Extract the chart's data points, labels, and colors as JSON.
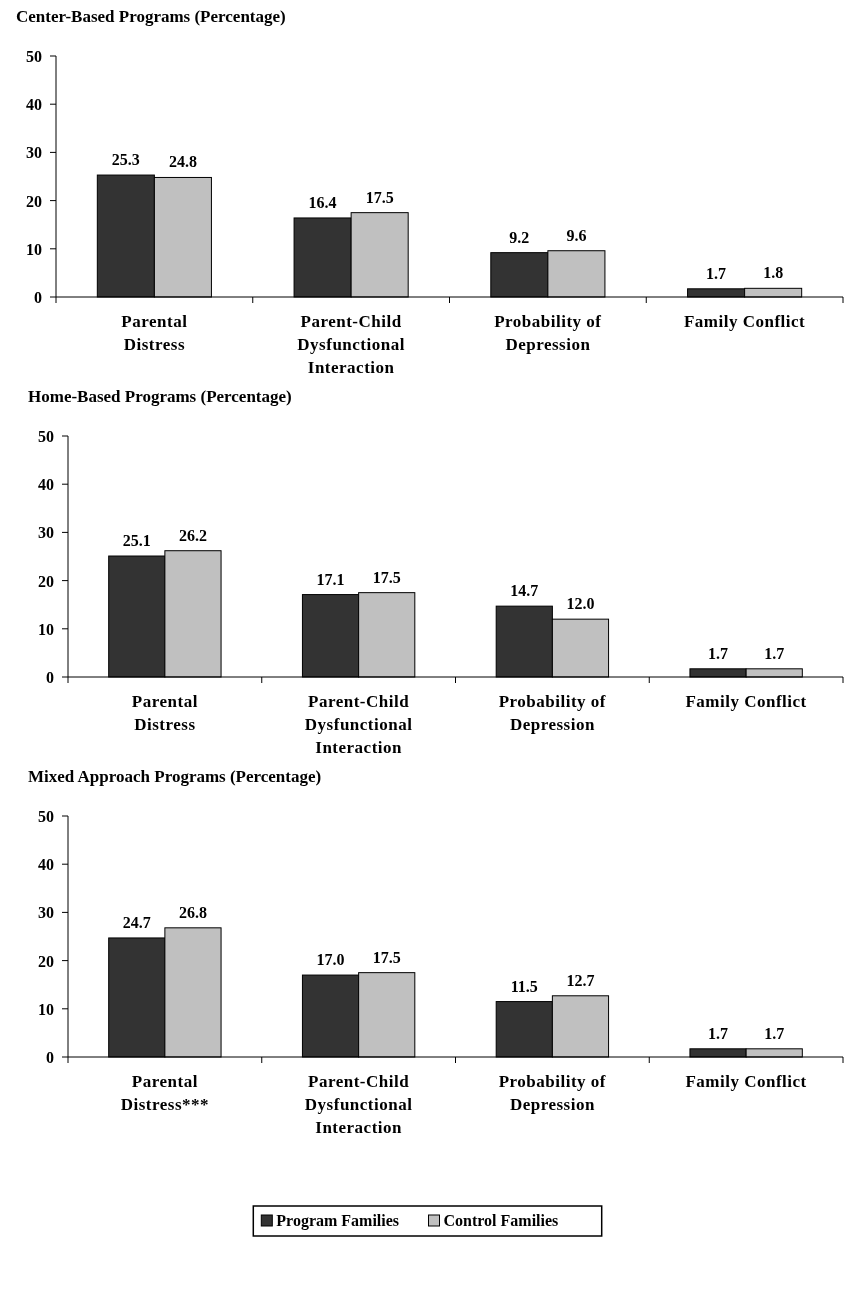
{
  "chart_data": [
    {
      "type": "bar",
      "title": "Center-Based Programs (Percentage)",
      "categories": [
        "Parental Distress",
        "Parent-Child Dysfunctional Interaction",
        "Probability of Depression",
        "Family Conflict"
      ],
      "series": [
        {
          "color": "#333333",
          "values": [
            25.3,
            16.4,
            9.2,
            1.7
          ]
        },
        {
          "color": "#c0c0c0",
          "values": [
            24.8,
            17.5,
            9.6,
            1.8
          ]
        }
      ],
      "ylim": [
        0,
        50
      ],
      "yticks": [
        0,
        10,
        20,
        30,
        40,
        50
      ],
      "data_labels": true,
      "grid": false,
      "legend": false
    },
    {
      "type": "bar",
      "title": "Home-Based Programs (Percentage)",
      "categories": [
        "Parental Distress",
        "Parent-Child Dysfunctional Interaction",
        "Probability of Depression",
        "Family Conflict"
      ],
      "series": [
        {
          "color": "#333333",
          "values": [
            25.1,
            17.1,
            14.7,
            1.7
          ],
          "value_labels": [
            "25.1",
            "17.1",
            "14.7",
            "1.7"
          ]
        },
        {
          "color": "#c0c0c0",
          "values": [
            26.2,
            17.5,
            12.0,
            1.7
          ],
          "value_labels": [
            "26.2",
            "17.5",
            "12.0",
            "1.7"
          ]
        }
      ],
      "ylim": [
        0,
        50
      ],
      "yticks": [
        0,
        10,
        20,
        30,
        40,
        50
      ],
      "grid": false,
      "legend": false
    },
    {
      "type": "bar",
      "title": "Mixed Approach Programs (Percentage)",
      "categories": [
        "Parental Distress***",
        "Parent-Child Dysfunctional Interaction",
        "Probability of Depression",
        "Family Conflict"
      ],
      "series": [
        {
          "name": "Program Families",
          "color": "#333333",
          "values": [
            24.7,
            17.0,
            11.5,
            1.7
          ],
          "value_labels": [
            "24.7",
            "17.0",
            "11.5",
            "1.7"
          ]
        },
        {
          "name": "Control Families",
          "color": "#c0c0c0",
          "values": [
            26.8,
            17.5,
            12.7,
            1.7
          ],
          "value_labels": [
            "26.8",
            "17.5",
            "12.7",
            "1.7"
          ]
        }
      ],
      "ylim": [
        0,
        50
      ],
      "yticks": [
        0,
        10,
        20,
        30,
        40,
        50
      ],
      "grid": false,
      "legend": "bottom"
    }
  ]
}
